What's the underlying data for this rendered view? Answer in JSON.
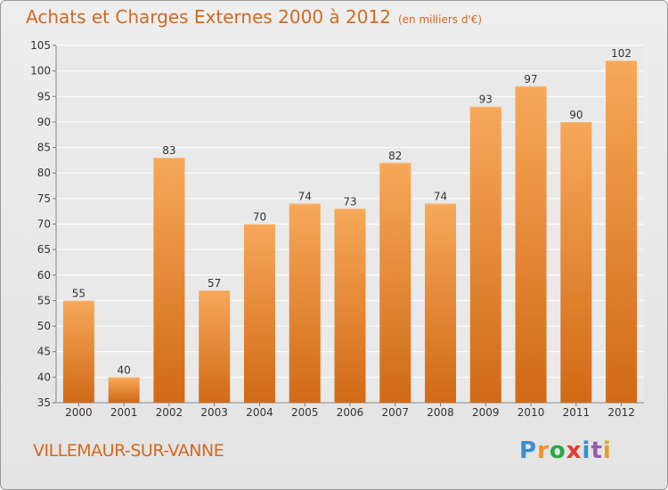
{
  "header": {
    "title": "Achats et Charges Externes 2000 à 2012",
    "subtitle": "(en milliers d'€)"
  },
  "footer": {
    "commune": "VILLEMAUR-SUR-VANNE",
    "logo": "Proxiti"
  },
  "colors": {
    "bar_top": "#f7a85a",
    "bar_bottom": "#d06a16",
    "title": "#d2691e"
  },
  "chart_data": {
    "type": "bar",
    "title": "Achats et Charges Externes 2000 à 2012",
    "subtitle": "(en milliers d'€)",
    "categories": [
      "2000",
      "2001",
      "2002",
      "2003",
      "2004",
      "2005",
      "2006",
      "2007",
      "2008",
      "2009",
      "2010",
      "2011",
      "2012"
    ],
    "values": [
      55,
      40,
      83,
      57,
      70,
      74,
      73,
      82,
      74,
      93,
      97,
      90,
      102
    ],
    "ylim": [
      35,
      105
    ],
    "yticks": [
      35,
      40,
      45,
      50,
      55,
      60,
      65,
      70,
      75,
      80,
      85,
      90,
      95,
      100,
      105
    ],
    "grid": true
  }
}
